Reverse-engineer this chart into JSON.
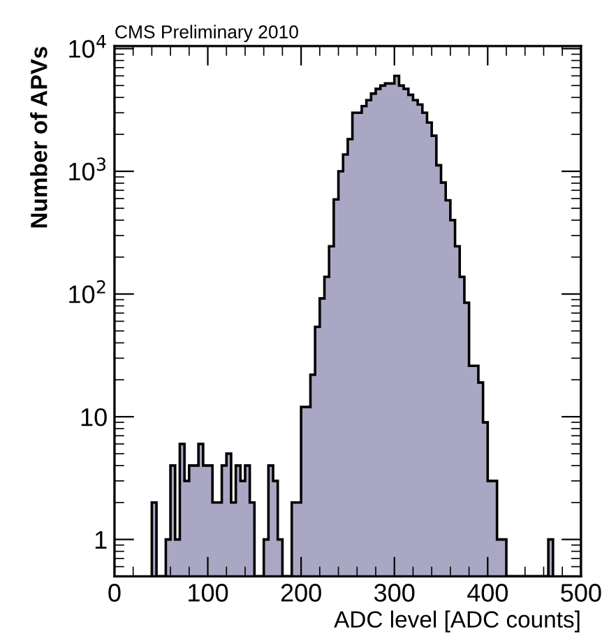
{
  "chart_data": {
    "type": "histogram",
    "title": "CMS Preliminary 2010",
    "xlabel": "ADC level [ADC counts]",
    "ylabel": "Number of APVs",
    "bins": [
      40,
      45,
      50,
      55,
      60,
      65,
      70,
      75,
      80,
      85,
      90,
      95,
      100,
      105,
      110,
      115,
      120,
      125,
      130,
      135,
      140,
      145,
      150,
      155,
      160,
      165,
      170,
      175,
      180,
      185,
      190,
      195,
      200,
      205,
      210,
      215,
      220,
      225,
      230,
      235,
      240,
      245,
      250,
      255,
      260,
      265,
      270,
      275,
      280,
      285,
      290,
      295,
      300,
      305,
      310,
      315,
      320,
      325,
      330,
      335,
      340,
      345,
      350,
      355,
      360,
      365,
      370,
      375,
      380,
      385,
      390,
      395,
      400,
      405,
      410,
      415,
      420,
      425,
      430,
      435,
      440,
      445,
      450,
      455,
      460,
      465,
      470
    ],
    "values": [
      2,
      null,
      null,
      1,
      4,
      1,
      6,
      3,
      4,
      4,
      6,
      4,
      4,
      2,
      2,
      4,
      5,
      2,
      4,
      3,
      4,
      2,
      null,
      null,
      1,
      4,
      3,
      1,
      null,
      null,
      2,
      2,
      12,
      12,
      22,
      54,
      92,
      138,
      245,
      590,
      1000,
      1370,
      1830,
      3000,
      3000,
      3400,
      3800,
      4300,
      4700,
      5000,
      5200,
      5200,
      6000,
      5000,
      4700,
      4200,
      3800,
      3500,
      3000,
      2500,
      1950,
      1120,
      810,
      580,
      400,
      245,
      138,
      85,
      26,
      26,
      19,
      9,
      3,
      3,
      1,
      1,
      null,
      null,
      null,
      null,
      null,
      null,
      null,
      null,
      null,
      1
    ],
    "color": "#aaa7c4",
    "log": true,
    "xlim": [
      0,
      500
    ],
    "xticks": [
      0,
      100,
      200,
      300,
      400,
      500
    ],
    "ylim": [
      0.5,
      10500
    ],
    "yticks": [
      1,
      10,
      {
        "value": 100,
        "label": "10$^{2}$"
      },
      {
        "value": 1000,
        "label": "10$^{3}$"
      },
      {
        "value": 10000,
        "label": "10$^{4}$"
      }
    ],
    "grid": false
  }
}
